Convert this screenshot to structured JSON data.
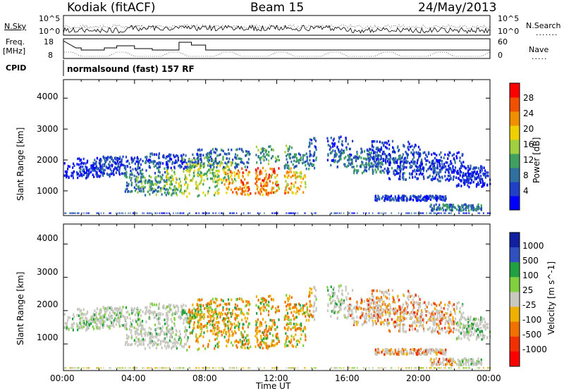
{
  "header": {
    "station": "Kodiak (fitACF)",
    "beam": "Beam 15",
    "date": "24/May/2013"
  },
  "noise_panel": {
    "left_label": "N.Sky",
    "right_label": "N.Search",
    "left_ticks": [
      "10^5",
      "10^0"
    ],
    "right_ticks": [
      "10^5",
      "10^0"
    ]
  },
  "freq_panel": {
    "left_label_1": "Freq.",
    "left_label_2": "[MHz]",
    "right_label": "Nave",
    "left_ticks": [
      "18",
      "8"
    ],
    "right_ticks": [
      "60",
      "0"
    ]
  },
  "cpid": {
    "label": "CPID",
    "program": "normalsound (fast) 157 RF"
  },
  "colors": {
    "power_scale": [
      "#0000ff",
      "#2040c8",
      "#3070a0",
      "#40a060",
      "#a0d040",
      "#f0d000",
      "#f09000",
      "#f05000",
      "#ff0000"
    ],
    "velocity_scale": [
      "#1020a0",
      "#3050c0",
      "#20a040",
      "#80d040",
      "#c8c8c0",
      "#f0b000",
      "#f07000",
      "#f03000",
      "#ff0000"
    ]
  },
  "chart_data": [
    {
      "type": "heatmap",
      "title": "Power",
      "xlabel": "Time UT",
      "ylabel": "Slant Range [km]",
      "x_ticks": [
        "00:00",
        "04:00",
        "08:00",
        "12:00",
        "16:00",
        "20:00",
        "00:00"
      ],
      "y_ticks": [
        1000,
        2000,
        3000,
        4000
      ],
      "ylim": [
        200,
        4600
      ],
      "colorbar_label": "Power [dB]",
      "colorbar_ticks": [
        4,
        8,
        12,
        16,
        20,
        24,
        28
      ],
      "colorbar_range": [
        0,
        32
      ]
    },
    {
      "type": "heatmap",
      "title": "Velocity",
      "xlabel": "Time UT",
      "ylabel": "Slant Range [km]",
      "x_ticks": [
        "00:00",
        "04:00",
        "08:00",
        "12:00",
        "16:00",
        "20:00",
        "00:00"
      ],
      "y_ticks": [
        1000,
        2000,
        3000,
        4000
      ],
      "ylim": [
        200,
        4600
      ],
      "colorbar_label": "Velocity [m s^-1]",
      "colorbar_ticks": [
        "1000",
        "500",
        "100",
        "25",
        "-25",
        "-100",
        "-500",
        "-1000"
      ]
    }
  ]
}
